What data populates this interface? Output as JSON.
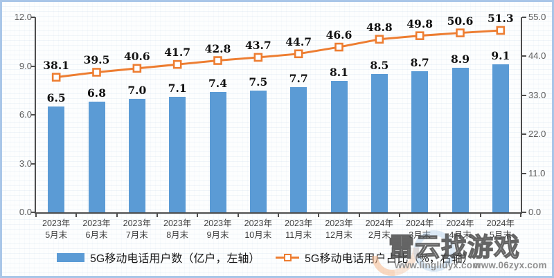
{
  "chart_data": {
    "type": "bar",
    "combo": "bar+line",
    "title": "",
    "categories": [
      {
        "top": "2023年",
        "bottom": "5月末"
      },
      {
        "top": "2023年",
        "bottom": "6月末"
      },
      {
        "top": "2023年",
        "bottom": "7月末"
      },
      {
        "top": "2023年",
        "bottom": "8月末"
      },
      {
        "top": "2023年",
        "bottom": "9月末"
      },
      {
        "top": "2023年",
        "bottom": "10月末"
      },
      {
        "top": "2023年",
        "bottom": "11月末"
      },
      {
        "top": "2023年",
        "bottom": "12月末"
      },
      {
        "top": "2024年",
        "bottom": "2月末"
      },
      {
        "top": "2024年",
        "bottom": "3月末"
      },
      {
        "top": "2024年",
        "bottom": "4月末"
      },
      {
        "top": "2024年",
        "bottom": "5月末"
      }
    ],
    "series": [
      {
        "name": "5G移动电话用户数（亿户，左轴）",
        "type": "bar",
        "axis": "left",
        "color": "#5B9BD5",
        "values": [
          6.5,
          6.8,
          7.0,
          7.1,
          7.4,
          7.5,
          7.7,
          8.1,
          8.5,
          8.7,
          8.9,
          9.1
        ],
        "labels": [
          "6.5",
          "6.8",
          "7.0",
          "7.1",
          "7.4",
          "7.5",
          "7.7",
          "8.1",
          "8.5",
          "8.7",
          "8.9",
          "9.1"
        ]
      },
      {
        "name": "5G移动电话用户占比（%，右轴）",
        "type": "line",
        "axis": "right",
        "color": "#ED7D31",
        "marker": "hollow-square",
        "values": [
          38.1,
          39.5,
          40.6,
          41.7,
          42.8,
          43.7,
          44.7,
          46.6,
          48.8,
          49.8,
          50.6,
          51.3
        ],
        "labels": [
          "38.1",
          "39.5",
          "40.6",
          "41.7",
          "42.8",
          "43.7",
          "44.7",
          "46.6",
          "48.8",
          "49.8",
          "50.6",
          "51.3"
        ]
      }
    ],
    "axes": {
      "left": {
        "min": 0,
        "max": 12,
        "tick_labels": [
          "0.0",
          "3.0",
          "6.0",
          "9.0",
          "12.0"
        ]
      },
      "right": {
        "min": 0,
        "max": 55,
        "tick_labels": [
          "0.0",
          "11.0",
          "22.0",
          "33.0",
          "44.0",
          "55.0"
        ]
      }
    },
    "grid": false,
    "legend_position": "bottom"
  },
  "colors": {
    "bar": "#5B9BD5",
    "line": "#ED7D31",
    "frame_border": "#A9C6E8",
    "axis": "#4D4D4D",
    "tick_text": "#595959",
    "data_label": "#111111"
  },
  "watermark": {
    "title": "雷云找游戏",
    "url1": "www.lingliuyx.com",
    "url2": "www.06zyx.com"
  }
}
